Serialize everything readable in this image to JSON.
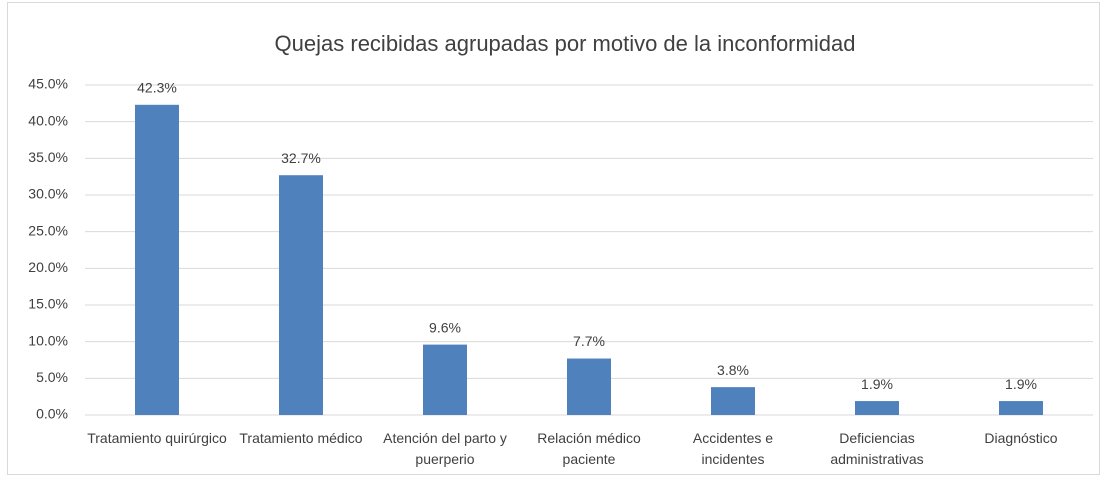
{
  "chart_data": {
    "type": "bar",
    "title": "Quejas recibidas agrupadas por motivo de la inconformidad",
    "categories": [
      "Tratamiento quirúrgico",
      "Tratamiento médico",
      "Atención del parto y puerperio",
      "Relación médico paciente",
      "Accidentes e incidentes",
      "Deficiencias administrativas",
      "Diagnóstico"
    ],
    "values": [
      42.3,
      32.7,
      9.6,
      7.7,
      3.8,
      1.9,
      1.9
    ],
    "value_labels": [
      "42.3%",
      "32.7%",
      "9.6%",
      "7.7%",
      "3.8%",
      "1.9%",
      "1.9%"
    ],
    "color": "#4f81bd",
    "ylim": [
      0,
      45
    ],
    "yticks": [
      {
        "value": 0,
        "label": "0.0%"
      },
      {
        "value": 5,
        "label": "5.0%"
      },
      {
        "value": 10,
        "label": "10.0%"
      },
      {
        "value": 15,
        "label": "15.0%"
      },
      {
        "value": 20,
        "label": "20.0%"
      },
      {
        "value": 25,
        "label": "25.0%"
      },
      {
        "value": 30,
        "label": "30.0%"
      },
      {
        "value": 35,
        "label": "35.0%"
      },
      {
        "value": 40,
        "label": "40.0%"
      },
      {
        "value": 45,
        "label": "45.0%"
      }
    ],
    "grid": true
  }
}
